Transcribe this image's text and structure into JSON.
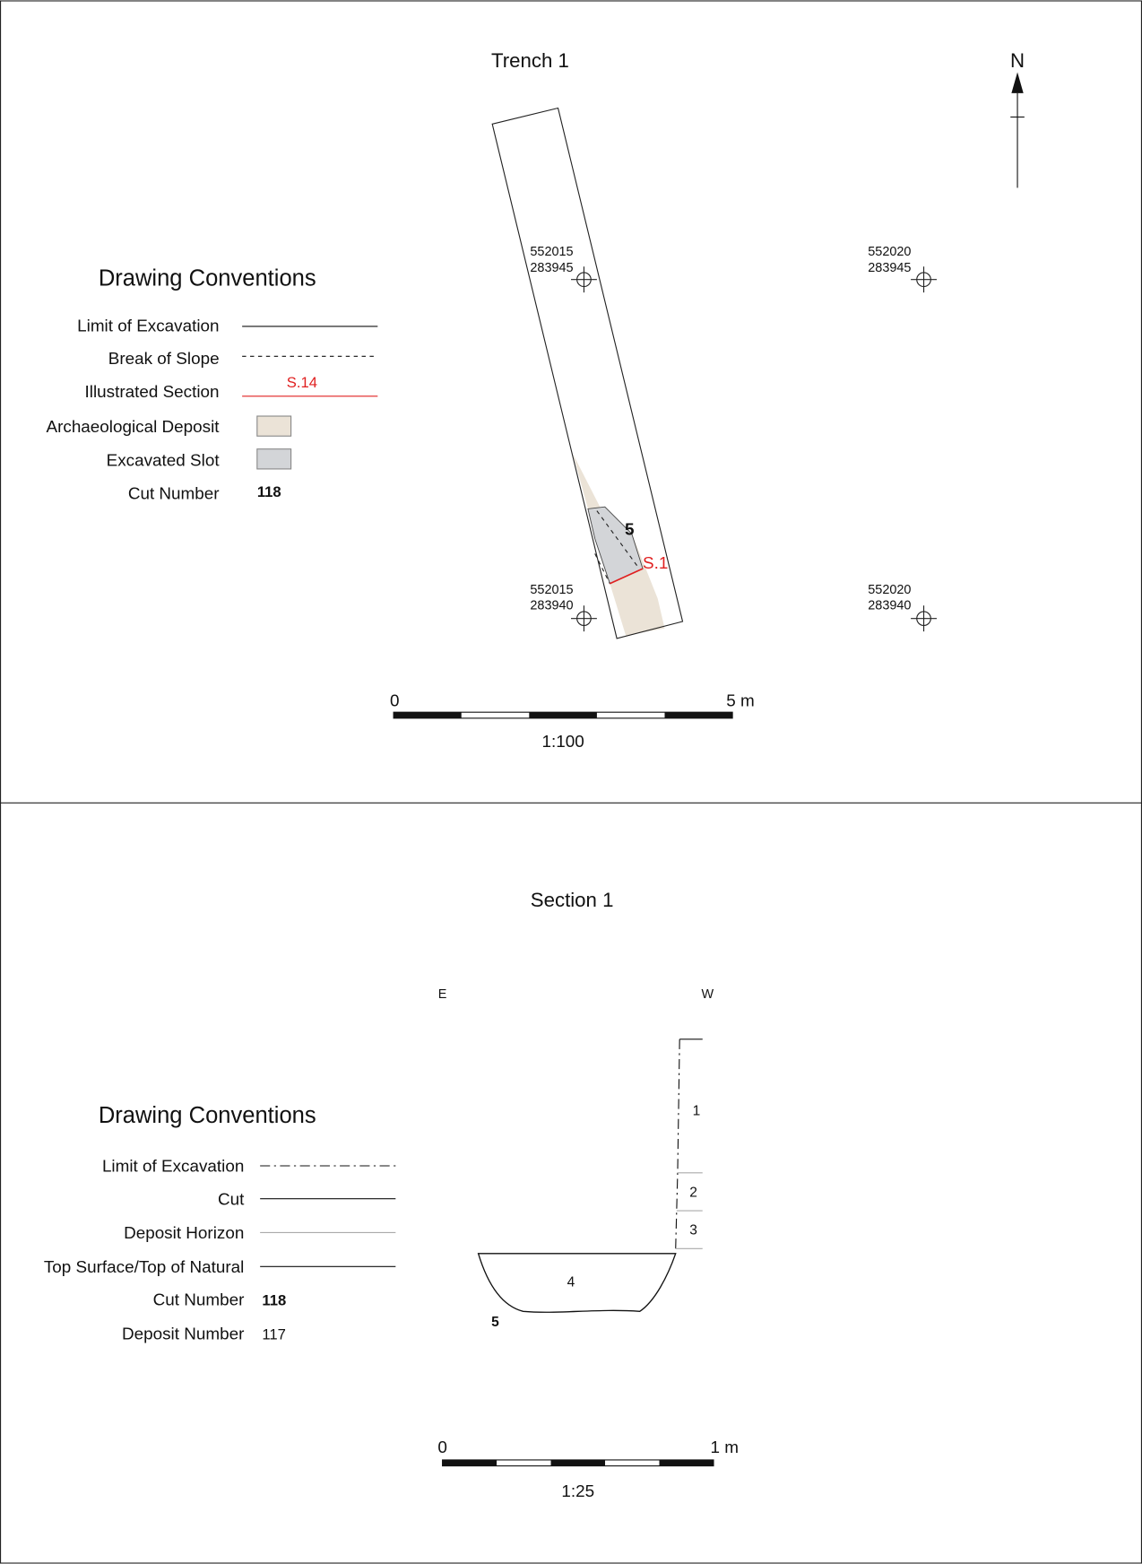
{
  "plan": {
    "title": "Trench 1",
    "north": "N",
    "legend": {
      "title": "Drawing Conventions",
      "items": [
        "Limit of Excavation",
        "Break of Slope",
        "Illustrated Section",
        "Archaeological Deposit",
        "Excavated Slot",
        "Cut Number"
      ],
      "section_sample": "S.14",
      "cut_sample": "118"
    },
    "coords": [
      {
        "e": "552015",
        "n": "283945"
      },
      {
        "e": "552020",
        "n": "283945"
      },
      {
        "e": "552015",
        "n": "283940"
      },
      {
        "e": "552020",
        "n": "283940"
      }
    ],
    "cut_label": "5",
    "section_label": "S.1",
    "scale": {
      "start": "0",
      "end": "5 m",
      "ratio": "1:100"
    }
  },
  "section": {
    "title": "Section 1",
    "east": "E",
    "west": "W",
    "legend": {
      "title": "Drawing Conventions",
      "items": [
        "Limit of Excavation",
        "Cut",
        "Deposit Horizon",
        "Top Surface/Top of Natural",
        "Cut Number",
        "Deposit Number"
      ],
      "cut_sample": "118",
      "deposit_sample": "117"
    },
    "deposits": [
      "1",
      "2",
      "3",
      "4"
    ],
    "cut_label": "5",
    "scale": {
      "start": "0",
      "end": "1 m",
      "ratio": "1:25"
    }
  }
}
